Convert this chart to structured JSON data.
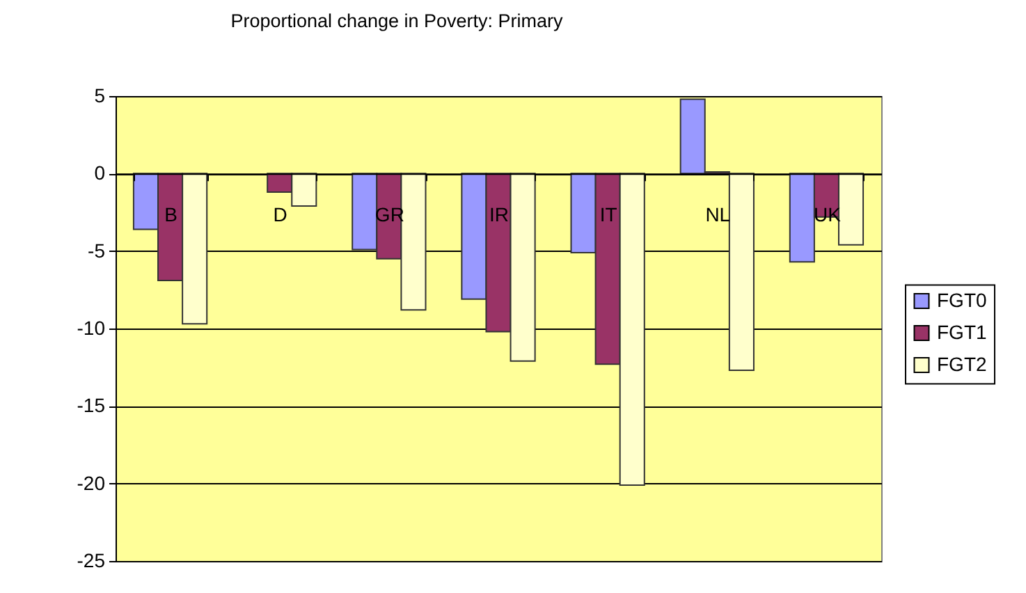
{
  "chart_data": {
    "type": "bar",
    "title": "Proportional change in Poverty: Primary",
    "categories": [
      "B",
      "D",
      "GR",
      "IR",
      "IT",
      "NL",
      "UK"
    ],
    "series": [
      {
        "name": "FGT0",
        "color": "#9999ff",
        "values": [
          -3.6,
          null,
          -4.9,
          -8.1,
          -5.1,
          4.8,
          -5.7
        ]
      },
      {
        "name": "FGT1",
        "color": "#993366",
        "values": [
          -6.9,
          -1.2,
          -5.5,
          -10.2,
          -12.3,
          0.1,
          -2.8
        ]
      },
      {
        "name": "FGT2",
        "color": "#ffffcc",
        "values": [
          -9.7,
          -2.1,
          -8.8,
          -12.1,
          -20.1,
          -12.7,
          -4.6
        ]
      }
    ],
    "ylim": [
      -25,
      5
    ],
    "yticks": [
      -25,
      -20,
      -15,
      -10,
      -5,
      0,
      5
    ],
    "grid": "y",
    "legend": "right"
  }
}
